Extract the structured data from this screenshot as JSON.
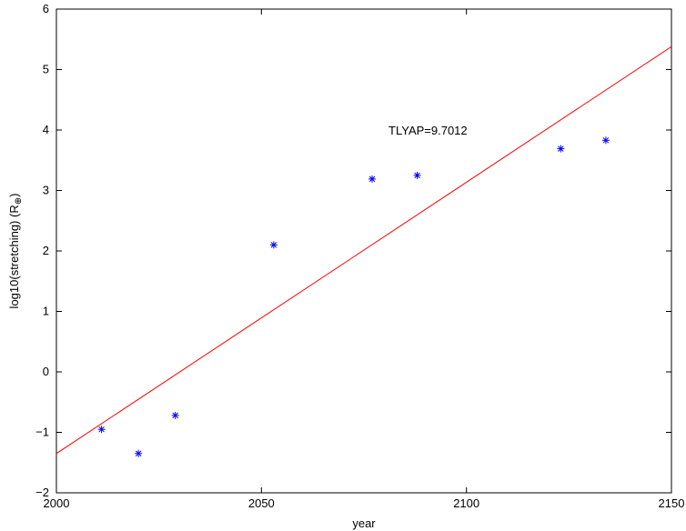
{
  "chart_data": {
    "type": "scatter",
    "xlabel": "year",
    "ylabel": "log10(stretching) (R",
    "ylabel_subscript": "⊕",
    "ylabel_suffix": ")",
    "xlim": [
      2000,
      2150
    ],
    "ylim": [
      -2,
      6
    ],
    "grid": false,
    "xticks": [
      {
        "value": 2000,
        "label": "2000"
      },
      {
        "value": 2050,
        "label": "2050"
      },
      {
        "value": 2100,
        "label": "2100"
      },
      {
        "value": 2150,
        "label": "2150"
      }
    ],
    "yticks": [
      {
        "value": -2,
        "label": "−2"
      },
      {
        "value": -1,
        "label": "−1"
      },
      {
        "value": 0,
        "label": "0"
      },
      {
        "value": 1,
        "label": "1"
      },
      {
        "value": 2,
        "label": "2"
      },
      {
        "value": 3,
        "label": "3"
      },
      {
        "value": 4,
        "label": "4"
      },
      {
        "value": 5,
        "label": "5"
      },
      {
        "value": 6,
        "label": "6"
      }
    ],
    "series": [
      {
        "type": "scatter",
        "marker": "*",
        "color": "#0000ff",
        "points": [
          {
            "x": 2011,
            "y": -0.95
          },
          {
            "x": 2020,
            "y": -1.35
          },
          {
            "x": 2029,
            "y": -0.72
          },
          {
            "x": 2053,
            "y": 2.1
          },
          {
            "x": 2077,
            "y": 3.19
          },
          {
            "x": 2088,
            "y": 3.25
          },
          {
            "x": 2123,
            "y": 3.69
          },
          {
            "x": 2134,
            "y": 3.83
          }
        ]
      },
      {
        "type": "line",
        "color": "#ff0000",
        "points": [
          {
            "x": 2000,
            "y": -1.35
          },
          {
            "x": 2150,
            "y": 5.38
          }
        ]
      }
    ],
    "annotations": [
      {
        "text": "TLYAP=9.7012",
        "x": 2081,
        "y": 4.0
      }
    ]
  }
}
